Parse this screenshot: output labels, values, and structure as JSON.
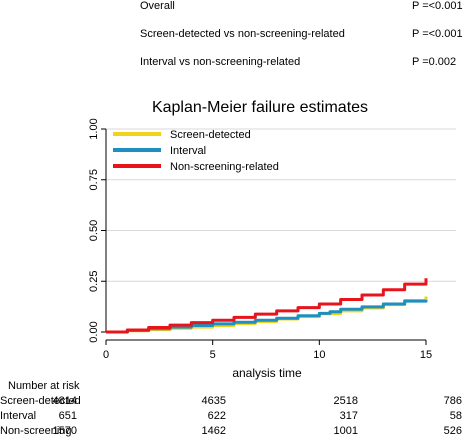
{
  "stats": [
    {
      "label": "Overall",
      "p": "P =<0.001"
    },
    {
      "label": "Screen-detected vs non-screening-related",
      "p": "P =<0.001"
    },
    {
      "label": "Interval vs non-screening-related",
      "p": "P =0.002"
    }
  ],
  "chart_data": {
    "type": "line",
    "title": "Kaplan-Meier failure estimates",
    "xlabel": "analysis time",
    "ylabel": "",
    "xlim": [
      0,
      15
    ],
    "ylim": [
      0,
      1
    ],
    "xticks": [
      "0",
      "5",
      "10",
      "15"
    ],
    "yticks": [
      "0.00",
      "0.25",
      "0.50",
      "0.75",
      "1.00"
    ],
    "grid": "horizontal",
    "legend_position": "top-left",
    "series": [
      {
        "name": "Screen-detected",
        "color": "#f2d31b",
        "x": [
          0,
          1,
          2,
          3,
          4,
          5,
          6,
          7,
          8,
          9,
          10,
          11,
          12,
          13,
          14,
          15
        ],
        "y": [
          0,
          0.006,
          0.012,
          0.018,
          0.024,
          0.032,
          0.042,
          0.052,
          0.064,
          0.076,
          0.09,
          0.104,
          0.118,
          0.135,
          0.155,
          0.175
        ]
      },
      {
        "name": "Interval",
        "color": "#1f8fbf",
        "x": [
          0,
          1,
          2,
          3,
          4,
          5,
          6,
          7,
          8,
          9,
          10,
          10.5,
          11,
          12,
          13,
          14,
          15
        ],
        "y": [
          0,
          0.008,
          0.016,
          0.024,
          0.032,
          0.04,
          0.048,
          0.058,
          0.068,
          0.08,
          0.092,
          0.1,
          0.112,
          0.124,
          0.138,
          0.152,
          0.158
        ]
      },
      {
        "name": "Non-screening-related",
        "color": "#e8141c",
        "x": [
          0,
          1,
          2,
          3,
          4,
          5,
          6,
          7,
          8,
          9,
          10,
          11,
          12,
          13,
          14,
          15
        ],
        "y": [
          0,
          0.01,
          0.022,
          0.034,
          0.046,
          0.058,
          0.072,
          0.088,
          0.104,
          0.12,
          0.138,
          0.16,
          0.182,
          0.208,
          0.236,
          0.265
        ]
      }
    ]
  },
  "risk_table": {
    "title": "Number at risk",
    "rows": [
      {
        "label": "Screen-detected",
        "values": [
          "4814",
          "4635",
          "2518",
          "786"
        ]
      },
      {
        "label": "Interval",
        "values": [
          "651",
          "622",
          "317",
          "58"
        ]
      },
      {
        "label": "Non-screening",
        "values": [
          "1570",
          "1462",
          "1001",
          "526"
        ]
      }
    ]
  }
}
